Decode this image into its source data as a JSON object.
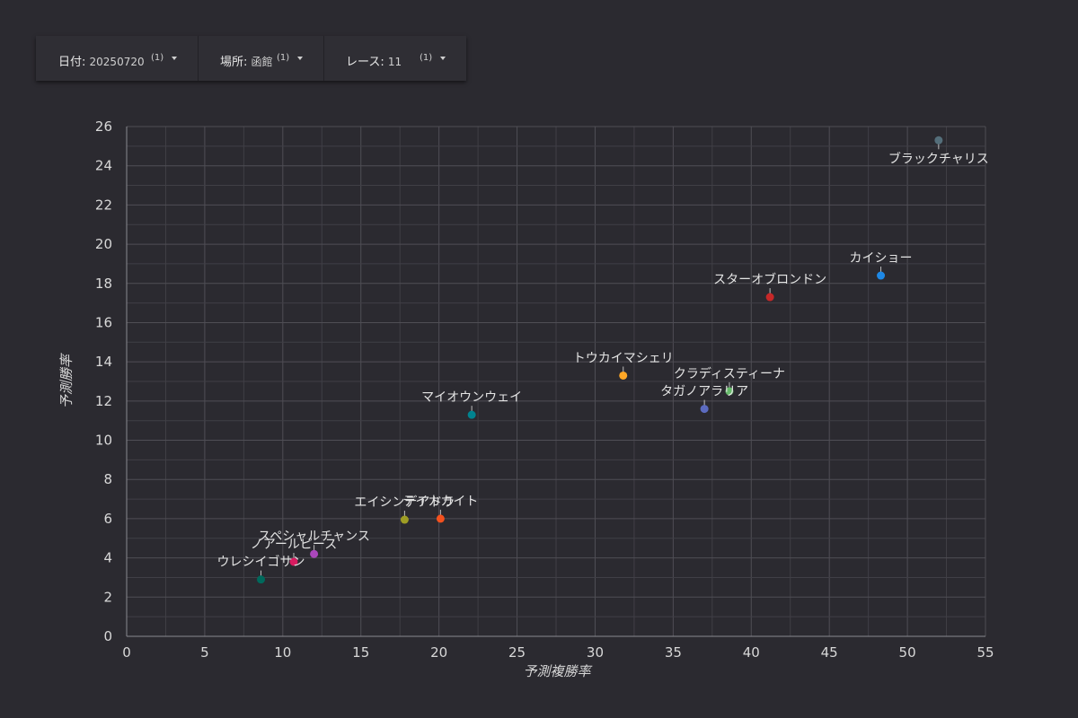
{
  "filters": [
    {
      "label": "日付",
      "value": "20250720",
      "count": "(1)"
    },
    {
      "label": "場所",
      "value": "函館",
      "count": "(1)"
    },
    {
      "label": "レース",
      "value": "11",
      "count": "(1)"
    }
  ],
  "chart_data": {
    "type": "scatter",
    "xlabel": "予測複勝率",
    "ylabel": "予測勝率",
    "xlim": [
      0,
      55
    ],
    "ylim": [
      0,
      26
    ],
    "x_ticks": [
      0,
      5,
      10,
      15,
      20,
      25,
      30,
      35,
      40,
      45,
      50,
      55
    ],
    "y_ticks": [
      0,
      2,
      4,
      6,
      8,
      10,
      12,
      14,
      16,
      18,
      20,
      22,
      24,
      26
    ],
    "grid": true,
    "points": [
      {
        "label": "ブラックチャリス",
        "x": 52.0,
        "y": 25.3,
        "color": "#546e7a"
      },
      {
        "label": "カイショー",
        "x": 48.3,
        "y": 18.4,
        "color": "#1e88e5"
      },
      {
        "label": "スターオブロンドン",
        "x": 41.2,
        "y": 17.3,
        "color": "#c62828"
      },
      {
        "label": "トウカイマシェリ",
        "x": 31.8,
        "y": 13.3,
        "color": "#ffa726"
      },
      {
        "label": "クラディスティーナ",
        "x": 38.6,
        "y": 12.5,
        "color": "#66bb6a"
      },
      {
        "label": "タガノアラリア",
        "x": 37.0,
        "y": 11.6,
        "color": "#5c6bc0"
      },
      {
        "label": "マイオウンウェイ",
        "x": 22.1,
        "y": 11.3,
        "color": "#00838f"
      },
      {
        "label": "エイシンデアドラ",
        "x": 17.8,
        "y": 5.95,
        "color": "#9e9d24"
      },
      {
        "label": "テイカカイト",
        "x": 20.1,
        "y": 6.0,
        "color": "#f4511e"
      },
      {
        "label": "スペシャルチャンス",
        "x": 12.0,
        "y": 4.2,
        "color": "#ab47bc"
      },
      {
        "label": "ノアールピース",
        "x": 10.7,
        "y": 3.8,
        "color": "#d81b60"
      },
      {
        "label": "ウレシイゴサン",
        "x": 8.6,
        "y": 2.9,
        "color": "#00695c"
      }
    ]
  }
}
